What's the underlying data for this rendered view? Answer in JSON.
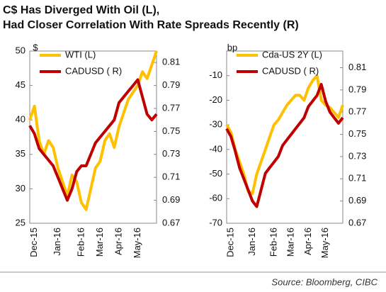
{
  "title": [
    "C$ Has Diverged With Oil (L),",
    "Had Closer Correlation With Rate Spreads Recently (R)"
  ],
  "source": "Source: Bloomberg, CIBC",
  "chart_data": [
    {
      "type": "line",
      "ylabel": "$",
      "legend": "upper left",
      "categories": [
        null,
        "Dec-15",
        null,
        null,
        null,
        null,
        "Jan-16",
        null,
        null,
        null,
        null,
        "Feb-16",
        null,
        null,
        null,
        "Mar-16",
        null,
        null,
        null,
        "Apr-16",
        null,
        null,
        null,
        "May-16",
        null,
        null,
        null,
        null
      ],
      "ylim": [
        25,
        50
      ],
      "yticks": [
        25,
        30,
        35,
        40,
        45,
        50
      ],
      "y2lim": [
        0.67,
        0.82
      ],
      "y2ticks": [
        0.67,
        0.69,
        0.71,
        0.73,
        0.75,
        0.77,
        0.79,
        0.81
      ],
      "series": [
        {
          "name": "WTI (L)",
          "color": "#FFC000",
          "values": [
            40,
            42,
            37,
            35,
            37,
            36,
            33,
            31,
            29,
            32,
            31,
            28,
            27,
            30,
            33,
            34,
            37,
            38,
            36,
            39,
            41,
            43,
            44,
            45,
            47,
            46,
            48,
            50
          ]
        },
        {
          "name": "CADUSD ( R)",
          "color": "#C00000",
          "axis": "y2",
          "values": [
            0.755,
            0.748,
            0.735,
            0.73,
            0.725,
            0.72,
            0.71,
            0.7,
            0.69,
            0.7,
            0.715,
            0.72,
            0.72,
            0.73,
            0.74,
            0.745,
            0.75,
            0.755,
            0.76,
            0.775,
            0.78,
            0.785,
            0.79,
            0.795,
            0.78,
            0.765,
            0.76,
            0.765
          ]
        }
      ]
    },
    {
      "type": "line",
      "ylabel": "bp",
      "legend": "upper left",
      "categories": [
        null,
        "Dec-15",
        null,
        null,
        null,
        null,
        "Jan-16",
        null,
        null,
        null,
        null,
        "Feb-16",
        null,
        null,
        null,
        "Mar-16",
        null,
        null,
        null,
        "Apr-16",
        null,
        null,
        null,
        "May-16",
        null,
        null,
        null,
        null
      ],
      "ylim": [
        -70,
        0
      ],
      "yticks": [
        -70,
        -60,
        -50,
        -40,
        -30,
        -20,
        -10
      ],
      "y2lim": [
        0.67,
        0.825
      ],
      "y2ticks": [
        0.67,
        0.69,
        0.71,
        0.73,
        0.75,
        0.77,
        0.79,
        0.81
      ],
      "series": [
        {
          "name": "Cda-US 2Y (L)",
          "color": "#FFC000",
          "values": [
            -30,
            -33,
            -40,
            -45,
            -50,
            -57,
            -58,
            -50,
            -45,
            -40,
            -35,
            -30,
            -28,
            -25,
            -22,
            -20,
            -18,
            -18,
            -20,
            -15,
            -12,
            -10,
            -20,
            -22,
            -23,
            -25,
            -27,
            -22
          ]
        },
        {
          "name": "CADUSD ( R)",
          "color": "#C00000",
          "axis": "y2",
          "values": [
            0.755,
            0.748,
            0.735,
            0.72,
            0.71,
            0.7,
            0.69,
            0.685,
            0.7,
            0.715,
            0.72,
            0.725,
            0.73,
            0.74,
            0.745,
            0.75,
            0.755,
            0.76,
            0.765,
            0.775,
            0.78,
            0.785,
            0.795,
            0.78,
            0.77,
            0.765,
            0.76,
            0.765
          ]
        }
      ]
    }
  ]
}
